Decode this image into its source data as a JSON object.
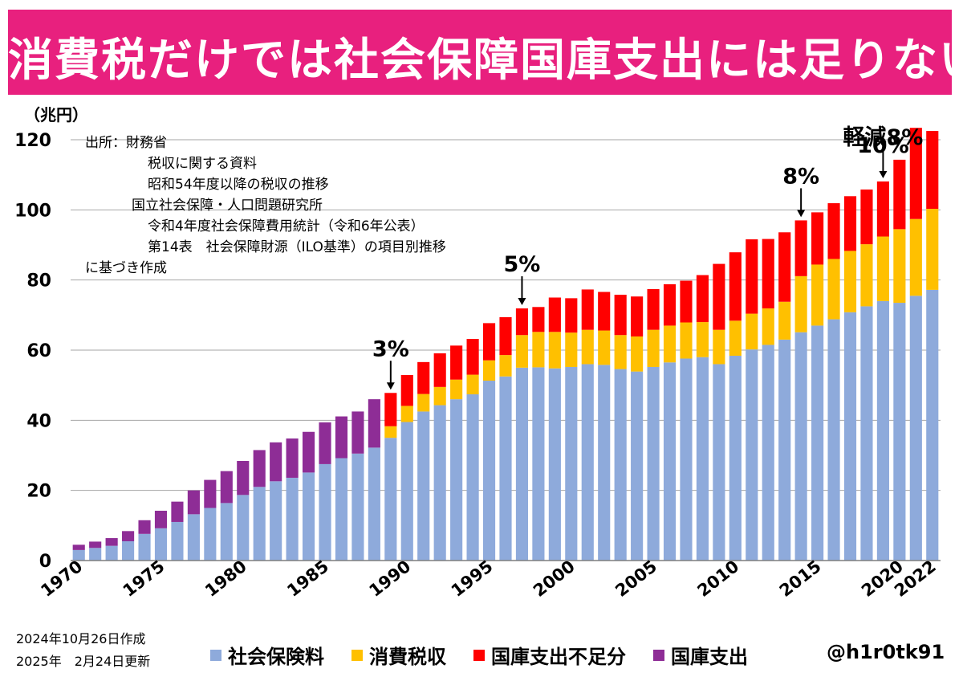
{
  "header": {
    "title": "消費税だけでは社会保障国庫支出には足りない"
  },
  "source_note": [
    "出所：財務省",
    "税収に関する資料",
    "昭和54年度以降の税収の推移",
    "国立社会保障・人口問題研究所",
    "令和4年度社会保障費用統計（令和6年公表）",
    "第14表　社会保障財源（ILO基準）の項目別推移",
    "に基づき作成"
  ],
  "footer": {
    "created": "2024年10月26日作成",
    "updated": "2025年　2月24日更新",
    "credit": "@h1r0tk91"
  },
  "colors": {
    "social_insurance": "#8eaadb",
    "consumption_tax": "#ffc000",
    "deficit": "#ff0000",
    "national_treasury": "#8e2d96",
    "title_bg": "#e8207e"
  },
  "chart_data": {
    "type": "bar",
    "stacked": true,
    "ylabel": "（兆円）",
    "ylim": [
      0,
      120
    ],
    "yticks": [
      0,
      20,
      40,
      60,
      80,
      100,
      120
    ],
    "grid": true,
    "legend_position": "bottom",
    "x_tick_labels": [
      "1970",
      "1975",
      "1980",
      "1985",
      "1990",
      "1995",
      "2000",
      "2005",
      "2010",
      "2015",
      "2020",
      "2022"
    ],
    "x": [
      1970,
      1971,
      1972,
      1973,
      1974,
      1975,
      1976,
      1977,
      1978,
      1979,
      1980,
      1981,
      1982,
      1983,
      1984,
      1985,
      1986,
      1987,
      1988,
      1989,
      1990,
      1991,
      1992,
      1993,
      1994,
      1995,
      1996,
      1997,
      1998,
      1999,
      2000,
      2001,
      2002,
      2003,
      2004,
      2005,
      2006,
      2007,
      2008,
      2009,
      2010,
      2011,
      2012,
      2013,
      2014,
      2015,
      2016,
      2017,
      2018,
      2019,
      2020,
      2021,
      2022
    ],
    "series": [
      {
        "name": "社会保険料",
        "color_key": "social_insurance",
        "values": [
          3,
          3.6,
          4.2,
          5.5,
          7.6,
          9.2,
          11,
          13.2,
          15,
          16.4,
          18.7,
          21,
          22.6,
          23.6,
          25.1,
          27.5,
          29.2,
          30.5,
          32.2,
          35,
          39.5,
          42.5,
          44.3,
          46,
          47.4,
          51.3,
          52.5,
          55,
          55.1,
          54.8,
          55.2,
          56,
          55.8,
          54.6,
          53.9,
          55.2,
          56.5,
          57.6,
          58,
          56,
          58.4,
          60.2,
          61.5,
          63,
          65.1,
          67,
          68.8,
          70.8,
          72.5,
          74,
          73.5,
          75.5,
          77.2
        ]
      },
      {
        "name": "消費税収",
        "color_key": "consumption_tax",
        "values": [
          0,
          0,
          0,
          0,
          0,
          0,
          0,
          0,
          0,
          0,
          0,
          0,
          0,
          0,
          0,
          0,
          0,
          0,
          0,
          3.3,
          4.6,
          5,
          5.2,
          5.6,
          5.6,
          5.8,
          6.1,
          9.3,
          10.1,
          10.4,
          9.8,
          9.8,
          9.8,
          9.7,
          10,
          10.6,
          10.5,
          10.3,
          10,
          9.8,
          10,
          10.2,
          10.4,
          10.8,
          16,
          17.4,
          17.2,
          17.5,
          17.7,
          18.4,
          21,
          21.9,
          23.1
        ]
      },
      {
        "name": "国庫支出不足分",
        "color_key": "deficit",
        "values": [
          0,
          0,
          0,
          0,
          0,
          0,
          0,
          0,
          0,
          0,
          0,
          0,
          0,
          0,
          0,
          0,
          0,
          0,
          0,
          9.5,
          8.8,
          9.1,
          9.6,
          9.7,
          10.2,
          10.6,
          10.8,
          7.6,
          7.1,
          9.8,
          9.8,
          11.5,
          11,
          11.5,
          11.4,
          11.6,
          11.8,
          11.9,
          13.4,
          18.8,
          19.5,
          21.2,
          19.8,
          19.8,
          15.9,
          14.9,
          15.9,
          15.6,
          15.6,
          15.7,
          19.8,
          26,
          22.2
        ]
      },
      {
        "name": "国庫支出",
        "color_key": "national_treasury",
        "values": [
          1.5,
          1.8,
          2.2,
          2.9,
          3.9,
          5,
          5.8,
          6.8,
          8,
          9.1,
          9.7,
          10.5,
          11.1,
          11.2,
          11.6,
          11.9,
          11.9,
          12,
          13.8,
          0,
          0,
          0,
          0,
          0,
          0,
          0,
          0,
          0,
          0,
          0,
          0,
          0,
          0,
          0,
          0,
          0,
          0,
          0,
          0,
          0,
          0,
          0,
          0,
          0,
          0,
          0,
          0,
          0,
          0,
          0,
          0,
          0,
          0
        ]
      }
    ],
    "annotations": [
      {
        "text": "3%",
        "x": 1989,
        "arrow": true
      },
      {
        "text": "5%",
        "x": 1997,
        "arrow": true
      },
      {
        "text": "8%",
        "x": 2014,
        "arrow": true
      },
      {
        "text": "10%",
        "x": 2019,
        "arrow": false
      },
      {
        "text": "軽減8%",
        "x": 2019,
        "arrow": true
      }
    ]
  }
}
